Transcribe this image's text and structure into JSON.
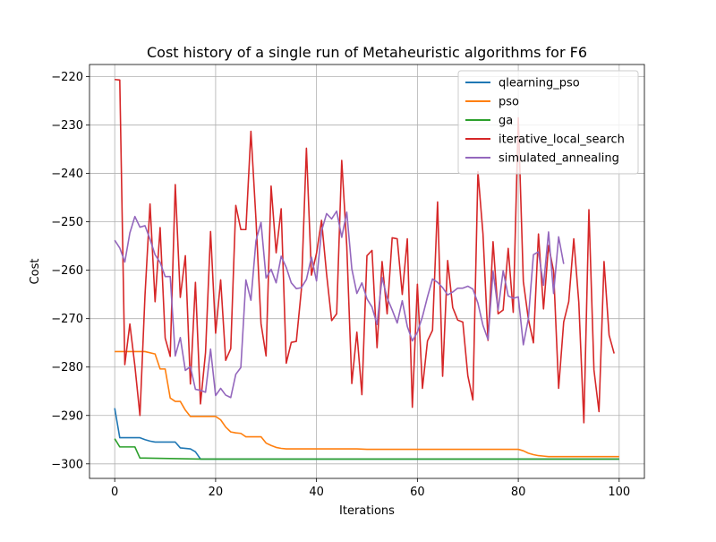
{
  "chart_data": {
    "type": "line",
    "title": "Cost history of a single run of Metaheuristic algorithms for F6",
    "xlabel": "Iterations",
    "ylabel": "Cost",
    "xlim": [
      -5,
      105
    ],
    "ylim": [
      -303,
      -217.5
    ],
    "xticks": [
      0,
      20,
      40,
      60,
      80,
      100
    ],
    "yticks": [
      -220,
      -230,
      -240,
      -250,
      -260,
      -270,
      -280,
      -290,
      -300
    ],
    "xtick_labels": [
      "0",
      "20",
      "40",
      "60",
      "80",
      "100"
    ],
    "ytick_labels": [
      "−220",
      "−230",
      "−240",
      "−250",
      "−260",
      "−270",
      "−280",
      "−290",
      "−300"
    ],
    "grid": true,
    "legend_position": "top-right",
    "series": [
      {
        "name": "qlearning_pso",
        "color": "#1f77b4",
        "x": [
          0,
          1,
          5,
          6,
          7,
          8,
          12,
          13,
          15,
          16,
          17,
          100
        ],
        "y": [
          -288.5,
          -294.6,
          -294.6,
          -295.0,
          -295.3,
          -295.5,
          -295.5,
          -296.7,
          -296.9,
          -297.5,
          -299.0,
          -299.0
        ]
      },
      {
        "name": "pso",
        "color": "#ff7f0e",
        "x": [
          0,
          6,
          8,
          9,
          10,
          11,
          12,
          13,
          14,
          15,
          20,
          21,
          22,
          23,
          24,
          25,
          26,
          29,
          30,
          31,
          32,
          33,
          34,
          35,
          40,
          48,
          50,
          60,
          70,
          80,
          81,
          82,
          83,
          84,
          85,
          86,
          87,
          88,
          100
        ],
        "y": [
          -276.8,
          -276.8,
          -277.3,
          -280.4,
          -280.4,
          -286.4,
          -287.1,
          -287.1,
          -288.9,
          -290.2,
          -290.2,
          -290.9,
          -292.4,
          -293.4,
          -293.6,
          -293.7,
          -294.4,
          -294.4,
          -295.7,
          -296.2,
          -296.6,
          -296.8,
          -296.9,
          -296.9,
          -296.9,
          -296.9,
          -297.0,
          -297.0,
          -297.0,
          -297.0,
          -297.3,
          -297.8,
          -298.1,
          -298.3,
          -298.4,
          -298.5,
          -298.5,
          -298.5,
          -298.5
        ]
      },
      {
        "name": "ga",
        "color": "#2ca02c",
        "x": [
          0,
          1,
          2,
          3,
          4,
          5,
          6,
          17,
          100
        ],
        "y": [
          -294.8,
          -296.5,
          -296.5,
          -296.5,
          -296.5,
          -298.8,
          -298.8,
          -299.0,
          -299.0
        ]
      },
      {
        "name": "iterative_local_search",
        "color": "#d62728",
        "x": [
          0,
          1,
          2,
          3,
          4,
          5,
          6,
          7,
          8,
          9,
          10,
          11,
          12,
          13,
          14,
          15,
          16,
          17,
          18,
          19,
          20,
          21,
          22,
          23,
          24,
          25,
          26,
          27,
          28,
          29,
          30,
          31,
          32,
          33,
          34,
          35,
          36,
          37,
          38,
          39,
          40,
          41,
          42,
          43,
          44,
          45,
          46,
          47,
          48,
          49,
          50,
          51,
          52,
          53,
          54,
          55,
          56,
          57,
          58,
          59,
          60,
          61,
          62,
          63,
          64,
          65,
          66,
          67,
          68,
          69,
          70,
          71,
          72,
          73,
          74,
          75,
          76,
          77,
          78,
          79,
          80,
          81,
          82,
          83,
          84,
          85,
          86,
          87,
          88,
          89,
          90,
          91,
          92,
          93,
          94,
          95,
          96,
          97,
          98,
          99
        ],
        "y": [
          -220.6,
          -220.7,
          -279.5,
          -271.1,
          -279.8,
          -290.0,
          -265.2,
          -246.3,
          -266.5,
          -251.2,
          -274.0,
          -277.8,
          -242.3,
          -265.6,
          -257.0,
          -283.5,
          -262.5,
          -287.6,
          -277.0,
          -252.0,
          -273.0,
          -262.0,
          -278.6,
          -276.2,
          -246.6,
          -251.6,
          -251.6,
          -231.3,
          -249.5,
          -271.0,
          -277.7,
          -242.6,
          -256.4,
          -247.3,
          -279.2,
          -274.9,
          -274.7,
          -264.0,
          -234.8,
          -261.0,
          -256.5,
          -249.7,
          -260.8,
          -270.4,
          -269.0,
          -237.3,
          -255.0,
          -283.4,
          -272.8,
          -285.7,
          -257.0,
          -255.9,
          -276.0,
          -258.2,
          -269.0,
          -253.3,
          -253.5,
          -265.0,
          -253.5,
          -288.3,
          -262.9,
          -284.4,
          -274.6,
          -272.4,
          -245.9,
          -281.9,
          -258.0,
          -267.7,
          -270.3,
          -270.7,
          -281.8,
          -286.8,
          -239.6,
          -252.5,
          -274.5,
          -254.1,
          -269.0,
          -268.2,
          -255.5,
          -268.7,
          -228.5,
          -262.3,
          -270.1,
          -275.0,
          -252.5,
          -268.0,
          -254.9,
          -260.2,
          -284.4,
          -270.7,
          -266.5,
          -253.5,
          -266.7,
          -291.5,
          -247.5,
          -280.6,
          -289.2,
          -258.2,
          -273.4,
          -277.2
        ]
      },
      {
        "name": "simulated_annealing",
        "color": "#9467bd",
        "x": [
          0,
          1,
          2,
          3,
          4,
          5,
          6,
          7,
          8,
          9,
          10,
          11,
          12,
          13,
          14,
          15,
          16,
          17,
          18,
          19,
          20,
          21,
          22,
          23,
          24,
          25,
          26,
          27,
          28,
          29,
          30,
          31,
          32,
          33,
          34,
          35,
          36,
          37,
          38,
          39,
          40,
          41,
          42,
          43,
          44,
          45,
          46,
          47,
          48,
          49,
          50,
          51,
          52,
          53,
          54,
          55,
          56,
          57,
          58,
          59,
          60,
          61,
          62,
          63,
          64,
          65,
          66,
          67,
          68,
          69,
          70,
          71,
          72,
          73,
          74,
          75,
          76,
          77,
          78,
          79,
          80,
          81,
          82,
          83,
          84,
          85,
          86,
          87,
          88,
          89
        ],
        "y": [
          -253.8,
          -255.4,
          -258.3,
          -252.3,
          -248.9,
          -251.1,
          -250.8,
          -253.6,
          -256.8,
          -258.4,
          -261.3,
          -261.3,
          -277.7,
          -273.9,
          -280.7,
          -279.9,
          -284.6,
          -284.8,
          -285.2,
          -276.3,
          -285.9,
          -284.4,
          -285.8,
          -286.3,
          -281.5,
          -280.1,
          -262.0,
          -266.2,
          -253.9,
          -250.1,
          -261.6,
          -259.8,
          -262.6,
          -257.1,
          -259.4,
          -262.6,
          -263.8,
          -263.6,
          -261.9,
          -257.3,
          -262.2,
          -251.9,
          -248.3,
          -249.4,
          -247.8,
          -253.2,
          -248.0,
          -259.7,
          -264.8,
          -262.6,
          -265.9,
          -267.6,
          -271.2,
          -261.5,
          -265.7,
          -268.2,
          -270.9,
          -266.3,
          -271.6,
          -274.6,
          -272.8,
          -269.6,
          -265.5,
          -261.8,
          -262.5,
          -263.6,
          -265.1,
          -264.5,
          -263.7,
          -263.7,
          -263.3,
          -263.9,
          -266.8,
          -271.4,
          -274.3,
          -260.2,
          -268.2,
          -260.1,
          -265.3,
          -265.8,
          -265.5,
          -275.4,
          -270.0,
          -256.8,
          -256.2,
          -263.1,
          -252.1,
          -264.8,
          -253.1,
          -258.7
        ]
      }
    ]
  }
}
